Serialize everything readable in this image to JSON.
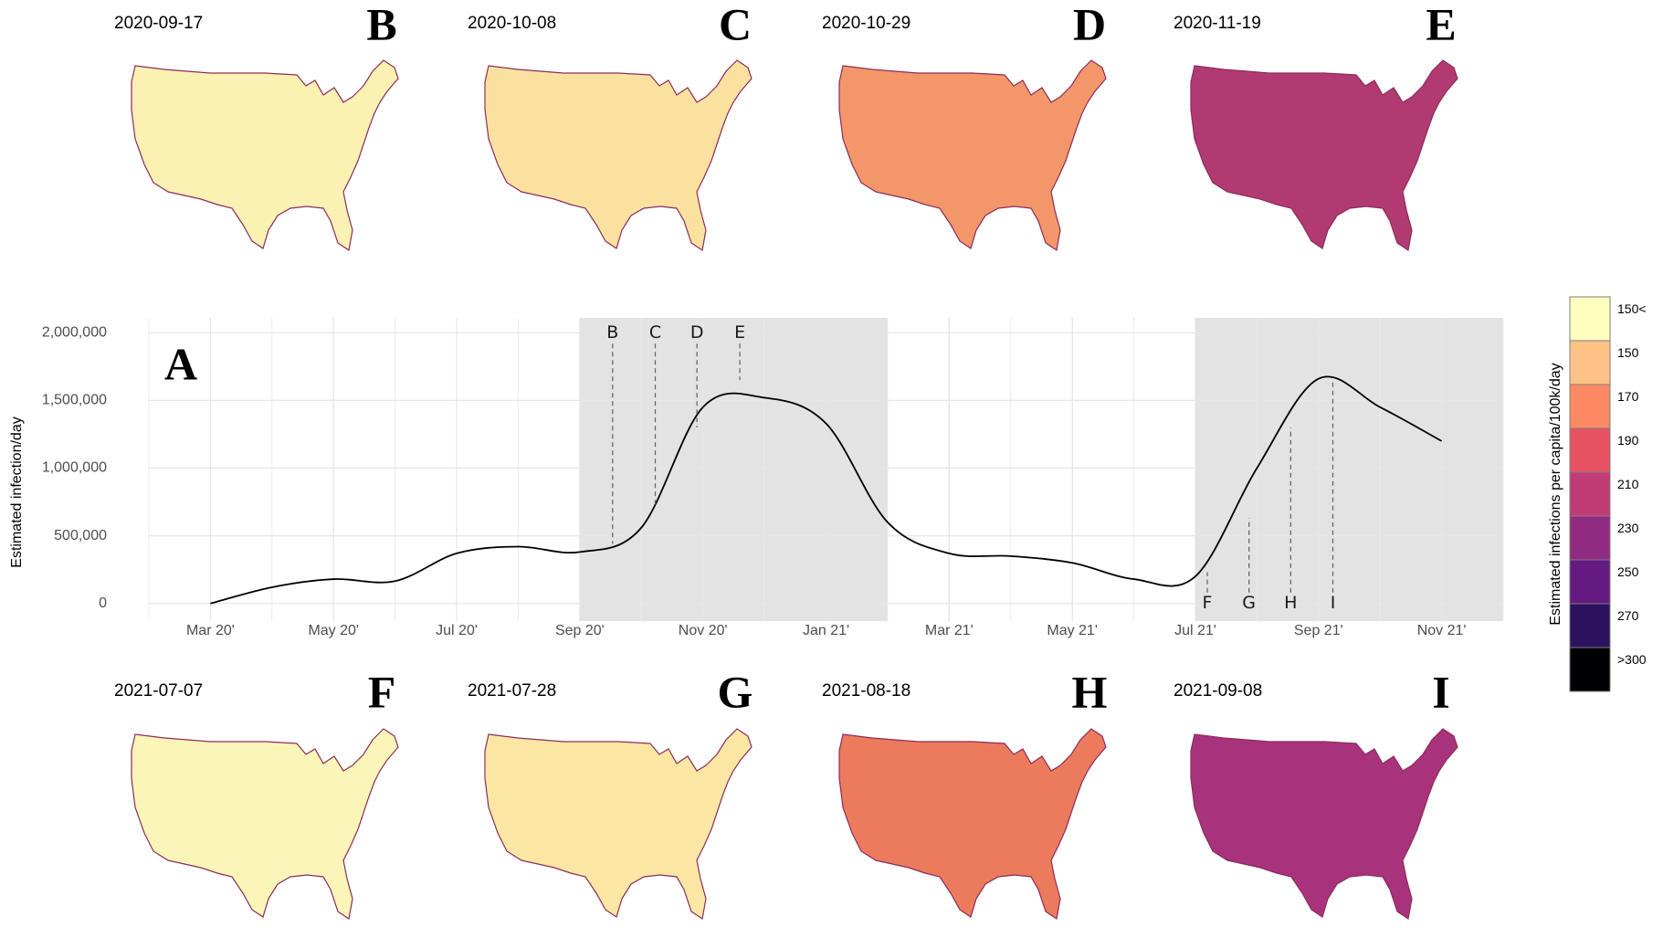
{
  "chart_data": {
    "type": "line",
    "panel": "A",
    "ylabel": "Estimated infection/day",
    "color": "#000000",
    "x": [
      "2020-03",
      "2020-04",
      "2020-05",
      "2020-06",
      "2020-07",
      "2020-08",
      "2020-09",
      "2020-10",
      "2020-11",
      "2020-12",
      "2021-01",
      "2021-02",
      "2021-03",
      "2021-04",
      "2021-05",
      "2021-06",
      "2021-07",
      "2021-08",
      "2021-09",
      "2021-10",
      "2021-11"
    ],
    "values": [
      0,
      120000,
      180000,
      165000,
      370000,
      420000,
      380000,
      560000,
      1450000,
      1520000,
      1330000,
      600000,
      370000,
      350000,
      300000,
      180000,
      200000,
      1000000,
      1660000,
      1450000,
      1200000
    ],
    "xlim": [
      "2020-02",
      "2021-12"
    ],
    "ylim": [
      -130000,
      2110000
    ],
    "xticks": [
      {
        "value": "2020-03",
        "label": "Mar 20'"
      },
      {
        "value": "2020-05",
        "label": "May 20'"
      },
      {
        "value": "2020-07",
        "label": "Jul 20'"
      },
      {
        "value": "2020-09",
        "label": "Sep 20'"
      },
      {
        "value": "2020-11",
        "label": "Nov 20'"
      },
      {
        "value": "2021-01",
        "label": "Jan 21'"
      },
      {
        "value": "2021-03",
        "label": "Mar 21'"
      },
      {
        "value": "2021-05",
        "label": "May 21'"
      },
      {
        "value": "2021-07",
        "label": "Jul 21'"
      },
      {
        "value": "2021-09",
        "label": "Sep 21'"
      },
      {
        "value": "2021-11",
        "label": "Nov 21'"
      }
    ],
    "yticks": [
      0,
      {
        "value": 500000,
        "label": "500,000"
      },
      {
        "value": 1000000,
        "label": "1,000,000"
      },
      {
        "value": 1500000,
        "label": "1,500,000"
      },
      {
        "value": 2000000,
        "label": "2,000,000"
      }
    ],
    "grid": true,
    "highlight_periods": [
      {
        "start": "2020-09",
        "end": "2021-02",
        "color": "#e3e3e3"
      },
      {
        "start": "2021-07",
        "end": "2021-12",
        "color": "#e3e3e3"
      }
    ]
  },
  "maps": {
    "top_row": [
      {
        "date": "2020-09-17",
        "letter": "B",
        "color": "#fbf1b3",
        "estimate": 440000
      },
      {
        "date": "2020-10-08",
        "letter": "C",
        "color": "#fbe1a0",
        "estimate": 730000
      },
      {
        "date": "2020-10-29",
        "letter": "D",
        "color": "#f3976a",
        "estimate": 1300000
      },
      {
        "date": "2020-11-19",
        "letter": "E",
        "color": "#b23a73",
        "estimate": 1650000
      }
    ],
    "bottom_row": [
      {
        "date": "2021-07-07",
        "letter": "F",
        "color": "#fcf5b8",
        "estimate": 230000
      },
      {
        "date": "2021-07-28",
        "letter": "G",
        "color": "#fbe6a4",
        "estimate": 630000
      },
      {
        "date": "2021-08-18",
        "letter": "H",
        "color": "#ec7a5d",
        "estimate": 1300000
      },
      {
        "date": "2021-09-08",
        "letter": "I",
        "color": "#a8337c",
        "estimate": 1660000
      }
    ]
  },
  "legend": {
    "title": "Estimated infections per capita/100k/day",
    "labels": [
      "150<",
      "150",
      "170",
      "190",
      "210",
      "230",
      "250",
      "270",
      ">300"
    ],
    "colors": [
      "#fcfdbf",
      "#fec287",
      "#fc8961",
      "#e75263",
      "#c13b75",
      "#912b81",
      "#641a80",
      "#2c115f",
      "#000004"
    ]
  }
}
